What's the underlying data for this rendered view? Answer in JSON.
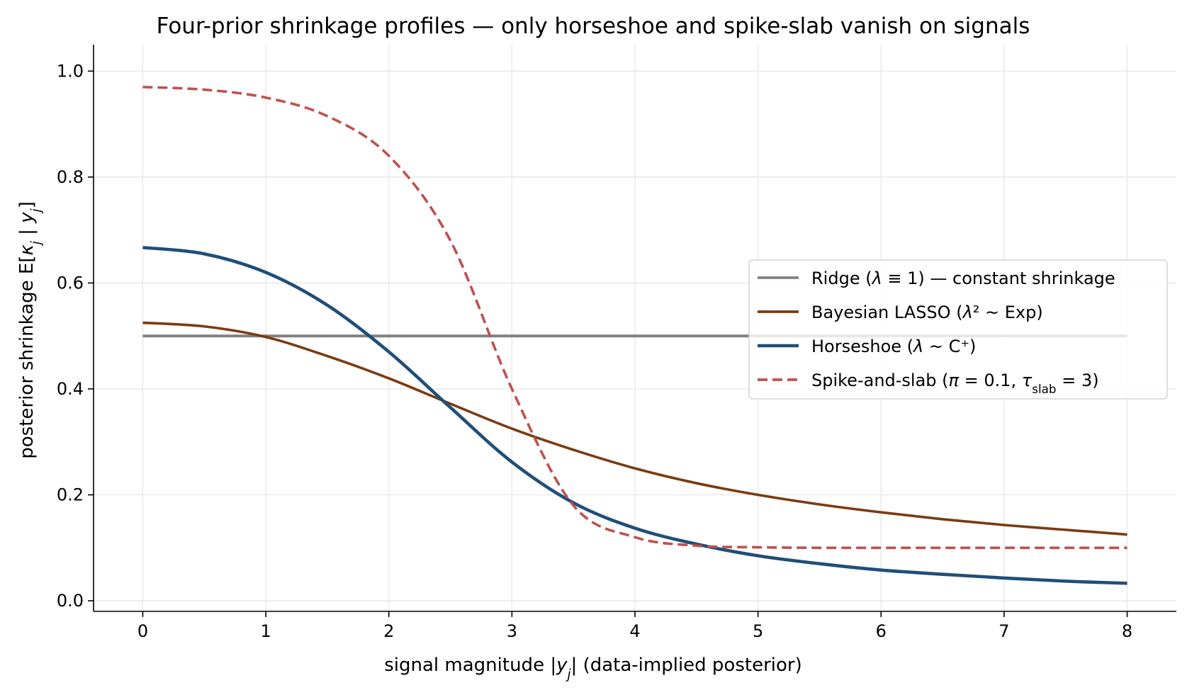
{
  "chart_data": {
    "type": "line",
    "title": "Four-prior shrinkage profiles — only horseshoe and spike-slab vanish on signals",
    "xlabel": "signal magnitude  |y_j|  (data-implied posterior)",
    "ylabel": "posterior shrinkage  E[κ_j | y_j]",
    "xlim": [
      -0.4,
      8.4
    ],
    "ylim": [
      -0.02,
      1.05
    ],
    "x_ticks": [
      0,
      1,
      2,
      3,
      4,
      5,
      6,
      7,
      8
    ],
    "y_ticks": [
      0.0,
      0.2,
      0.4,
      0.6,
      0.8,
      1.0
    ],
    "x_tick_labels": [
      "0",
      "1",
      "2",
      "3",
      "4",
      "5",
      "6",
      "7",
      "8"
    ],
    "y_tick_labels": [
      "0.0",
      "0.2",
      "0.4",
      "0.6",
      "0.8",
      "1.0"
    ],
    "grid": true,
    "legend_position": "center-right",
    "x": [
      0,
      0.5,
      1,
      1.5,
      2,
      2.5,
      3,
      3.5,
      4,
      4.5,
      5,
      5.5,
      6,
      6.5,
      7,
      7.5,
      8
    ],
    "series": [
      {
        "name": "Ridge (λ ≡ 1) — constant shrinkage",
        "color": "#808080",
        "dash": "solid",
        "values": [
          0.5,
          0.5,
          0.5,
          0.5,
          0.5,
          0.5,
          0.5,
          0.5,
          0.5,
          0.5,
          0.5,
          0.5,
          0.5,
          0.5,
          0.5,
          0.5,
          0.5
        ]
      },
      {
        "name": "Bayesian LASSO (λ² ~ Exp)",
        "color": "#7a3b10",
        "dash": "solid",
        "values": [
          0.525,
          0.518,
          0.498,
          0.462,
          0.42,
          0.372,
          0.325,
          0.285,
          0.25,
          0.222,
          0.2,
          0.182,
          0.167,
          0.154,
          0.143,
          0.134,
          0.125
        ]
      },
      {
        "name": "Horseshoe (λ ~ C⁺)",
        "color": "#1f4e79",
        "dash": "solid",
        "values": [
          0.667,
          0.655,
          0.62,
          0.558,
          0.47,
          0.365,
          0.262,
          0.185,
          0.137,
          0.107,
          0.085,
          0.07,
          0.058,
          0.05,
          0.043,
          0.037,
          0.033
        ]
      },
      {
        "name": "Spike-and-slab (π = 0.1, τ_slab = 3)",
        "color": "#c0504d",
        "dash": "dashed",
        "values": [
          0.97,
          0.965,
          0.95,
          0.915,
          0.84,
          0.68,
          0.4,
          0.18,
          0.12,
          0.104,
          0.101,
          0.1,
          0.1,
          0.1,
          0.1,
          0.1,
          0.1
        ]
      }
    ]
  }
}
